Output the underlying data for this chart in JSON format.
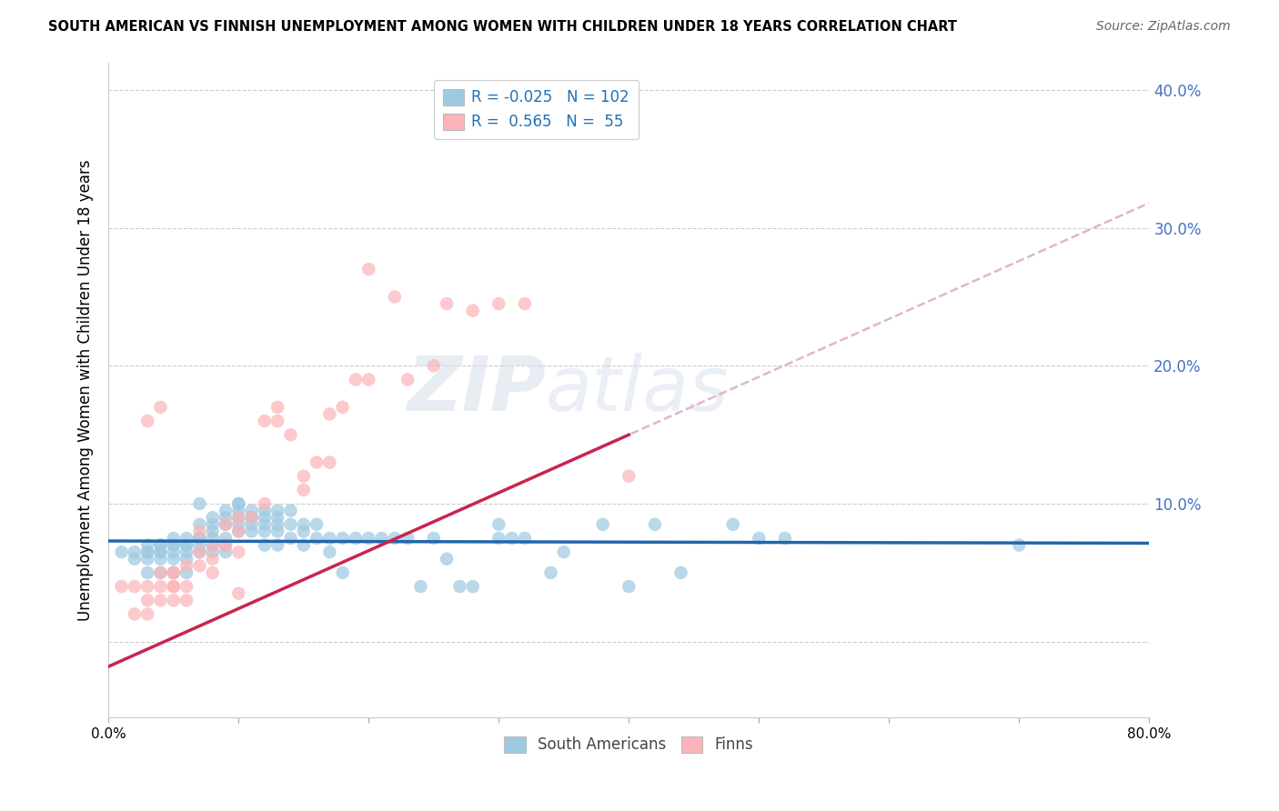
{
  "title": "SOUTH AMERICAN VS FINNISH UNEMPLOYMENT AMONG WOMEN WITH CHILDREN UNDER 18 YEARS CORRELATION CHART",
  "source": "Source: ZipAtlas.com",
  "ylabel": "Unemployment Among Women with Children Under 18 years",
  "xlim": [
    0.0,
    0.8
  ],
  "ylim": [
    -0.055,
    0.42
  ],
  "yticks": [
    0.0,
    0.1,
    0.2,
    0.3,
    0.4
  ],
  "ytick_labels": [
    "",
    "10.0%",
    "20.0%",
    "30.0%",
    "40.0%"
  ],
  "xticks": [
    0.0,
    0.1,
    0.2,
    0.3,
    0.4,
    0.5,
    0.6,
    0.7,
    0.8
  ],
  "xtick_labels": [
    "0.0%",
    "",
    "",
    "",
    "",
    "",
    "",
    "",
    "80.0%"
  ],
  "color_blue": "#9ecae1",
  "color_blue_line": "#2166ac",
  "color_pink": "#fbb4b9",
  "color_pink_line": "#c7254e",
  "color_pink_dashed": "#d4a0b5",
  "watermark_zip": "ZIP",
  "watermark_atlas": "atlas",
  "sa_regression_slope": -0.002,
  "sa_regression_intercept": 0.073,
  "fi_regression_slope": 0.42,
  "fi_regression_intercept": -0.018,
  "sa_x": [
    0.01,
    0.02,
    0.02,
    0.03,
    0.03,
    0.03,
    0.03,
    0.04,
    0.04,
    0.04,
    0.04,
    0.04,
    0.05,
    0.05,
    0.05,
    0.05,
    0.05,
    0.06,
    0.06,
    0.06,
    0.06,
    0.06,
    0.07,
    0.07,
    0.07,
    0.07,
    0.07,
    0.08,
    0.08,
    0.08,
    0.08,
    0.08,
    0.09,
    0.09,
    0.09,
    0.09,
    0.09,
    0.1,
    0.1,
    0.1,
    0.1,
    0.1,
    0.11,
    0.11,
    0.11,
    0.11,
    0.12,
    0.12,
    0.12,
    0.12,
    0.13,
    0.13,
    0.13,
    0.13,
    0.14,
    0.14,
    0.14,
    0.15,
    0.15,
    0.15,
    0.16,
    0.16,
    0.17,
    0.17,
    0.18,
    0.18,
    0.19,
    0.2,
    0.21,
    0.22,
    0.23,
    0.24,
    0.25,
    0.26,
    0.27,
    0.28,
    0.3,
    0.3,
    0.31,
    0.32,
    0.34,
    0.35,
    0.38,
    0.4,
    0.42,
    0.44,
    0.48,
    0.5,
    0.52,
    0.03,
    0.04,
    0.05,
    0.06,
    0.07,
    0.08,
    0.09,
    0.1,
    0.11,
    0.12,
    0.13,
    0.7
  ],
  "sa_y": [
    0.065,
    0.06,
    0.065,
    0.06,
    0.065,
    0.07,
    0.065,
    0.07,
    0.06,
    0.065,
    0.07,
    0.065,
    0.06,
    0.07,
    0.075,
    0.07,
    0.065,
    0.07,
    0.075,
    0.065,
    0.07,
    0.06,
    0.085,
    0.075,
    0.07,
    0.065,
    0.075,
    0.08,
    0.09,
    0.07,
    0.075,
    0.085,
    0.09,
    0.095,
    0.075,
    0.07,
    0.085,
    0.095,
    0.085,
    0.08,
    0.09,
    0.1,
    0.09,
    0.095,
    0.08,
    0.085,
    0.09,
    0.095,
    0.08,
    0.085,
    0.09,
    0.095,
    0.08,
    0.085,
    0.085,
    0.095,
    0.075,
    0.08,
    0.085,
    0.07,
    0.085,
    0.075,
    0.075,
    0.065,
    0.075,
    0.05,
    0.075,
    0.075,
    0.075,
    0.075,
    0.075,
    0.04,
    0.075,
    0.06,
    0.04,
    0.04,
    0.085,
    0.075,
    0.075,
    0.075,
    0.05,
    0.065,
    0.085,
    0.04,
    0.085,
    0.05,
    0.085,
    0.075,
    0.075,
    0.05,
    0.05,
    0.05,
    0.05,
    0.1,
    0.065,
    0.065,
    0.1,
    0.09,
    0.07,
    0.07,
    0.07
  ],
  "fi_x": [
    0.01,
    0.02,
    0.02,
    0.03,
    0.03,
    0.03,
    0.04,
    0.04,
    0.04,
    0.05,
    0.05,
    0.05,
    0.05,
    0.06,
    0.06,
    0.06,
    0.07,
    0.07,
    0.07,
    0.08,
    0.08,
    0.08,
    0.09,
    0.09,
    0.09,
    0.1,
    0.1,
    0.1,
    0.11,
    0.12,
    0.12,
    0.13,
    0.13,
    0.14,
    0.15,
    0.15,
    0.16,
    0.17,
    0.17,
    0.18,
    0.19,
    0.2,
    0.22,
    0.23,
    0.25,
    0.26,
    0.28,
    0.3,
    0.32,
    0.4,
    0.03,
    0.04,
    0.05,
    0.1,
    0.2
  ],
  "fi_y": [
    0.04,
    0.02,
    0.04,
    0.03,
    0.02,
    0.04,
    0.05,
    0.03,
    0.04,
    0.04,
    0.05,
    0.03,
    0.05,
    0.04,
    0.055,
    0.03,
    0.055,
    0.08,
    0.065,
    0.06,
    0.07,
    0.05,
    0.07,
    0.085,
    0.07,
    0.08,
    0.09,
    0.065,
    0.09,
    0.1,
    0.16,
    0.17,
    0.16,
    0.15,
    0.12,
    0.11,
    0.13,
    0.13,
    0.165,
    0.17,
    0.19,
    0.19,
    0.25,
    0.19,
    0.2,
    0.245,
    0.24,
    0.245,
    0.245,
    0.12,
    0.16,
    0.17,
    0.04,
    0.035,
    0.27
  ]
}
